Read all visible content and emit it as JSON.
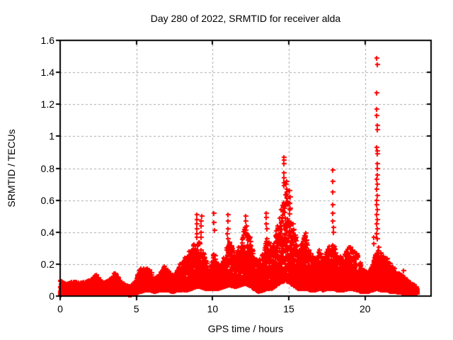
{
  "chart_data": {
    "type": "scatter",
    "title": "Day 280 of 2022, SRMTID for receiver alda",
    "xlabel": "GPS time / hours",
    "ylabel": "SRMTID / TECUs",
    "series_name": "SRMTID",
    "xlim": [
      0,
      24.33
    ],
    "ylim": [
      0,
      1.6
    ],
    "x_data_range": [
      0,
      23.42
    ],
    "grid": true,
    "legend": "none",
    "xticks": [
      {
        "v": 0,
        "label": "0"
      },
      {
        "v": 5,
        "label": "5"
      },
      {
        "v": 10,
        "label": "10"
      },
      {
        "v": 15,
        "label": "15"
      },
      {
        "v": 20,
        "label": "20"
      }
    ],
    "yticks": [
      {
        "v": 0,
        "label": "0"
      },
      {
        "v": 0.2,
        "label": "0.2"
      },
      {
        "v": 0.4,
        "label": "0.4"
      },
      {
        "v": 0.6,
        "label": "0.6"
      },
      {
        "v": 0.8,
        "label": "0.8"
      },
      {
        "v": 1,
        "label": "1"
      },
      {
        "v": 1.2,
        "label": "1.2"
      },
      {
        "v": 1.4,
        "label": "1.4"
      },
      {
        "v": 1.6,
        "label": "1.6"
      }
    ],
    "marker": {
      "shape": "plus",
      "color": "#ff0000",
      "size": 7
    },
    "colors": {
      "background": "#ffffff",
      "border": "#000000",
      "grid": "#a8a8a8",
      "text": "#000000"
    },
    "representation": "band_envelope rows are [hour, band_min, band_max] of the dense scatter band; spike_columns are discrete high-value points above the band",
    "band_envelope": {
      "points": [
        [
          0.0,
          0.01,
          0.1
        ],
        [
          0.4,
          0.015,
          0.08
        ],
        [
          0.8,
          0.02,
          0.09
        ],
        [
          1.2,
          0.015,
          0.09
        ],
        [
          1.6,
          0.02,
          0.09
        ],
        [
          2.0,
          0.02,
          0.1
        ],
        [
          2.3,
          0.02,
          0.15
        ],
        [
          2.6,
          0.02,
          0.1
        ],
        [
          3.0,
          0.02,
          0.09
        ],
        [
          3.3,
          0.02,
          0.11
        ],
        [
          3.6,
          0.02,
          0.15
        ],
        [
          3.9,
          0.02,
          0.1
        ],
        [
          4.2,
          0.015,
          0.08
        ],
        [
          4.6,
          0.01,
          0.06
        ],
        [
          4.9,
          0.015,
          0.09
        ],
        [
          5.2,
          0.03,
          0.17
        ],
        [
          5.6,
          0.04,
          0.19
        ],
        [
          5.9,
          0.04,
          0.16
        ],
        [
          6.2,
          0.03,
          0.11
        ],
        [
          6.5,
          0.04,
          0.14
        ],
        [
          6.8,
          0.04,
          0.19
        ],
        [
          7.1,
          0.04,
          0.16
        ],
        [
          7.4,
          0.03,
          0.13
        ],
        [
          7.7,
          0.04,
          0.17
        ],
        [
          8.0,
          0.04,
          0.23
        ],
        [
          8.3,
          0.04,
          0.26
        ],
        [
          8.6,
          0.05,
          0.3
        ],
        [
          8.9,
          0.06,
          0.35
        ],
        [
          9.2,
          0.06,
          0.33
        ],
        [
          9.5,
          0.05,
          0.24
        ],
        [
          9.8,
          0.05,
          0.17
        ],
        [
          10.1,
          0.05,
          0.28
        ],
        [
          10.4,
          0.05,
          0.18
        ],
        [
          10.7,
          0.06,
          0.22
        ],
        [
          11.0,
          0.07,
          0.36
        ],
        [
          11.2,
          0.07,
          0.34
        ],
        [
          11.5,
          0.06,
          0.27
        ],
        [
          11.8,
          0.07,
          0.32
        ],
        [
          12.1,
          0.08,
          0.44
        ],
        [
          12.4,
          0.07,
          0.38
        ],
        [
          12.7,
          0.05,
          0.26
        ],
        [
          13.0,
          0.03,
          0.21
        ],
        [
          13.3,
          0.04,
          0.27
        ],
        [
          13.6,
          0.05,
          0.38
        ],
        [
          13.9,
          0.05,
          0.29
        ],
        [
          14.2,
          0.07,
          0.42
        ],
        [
          14.5,
          0.09,
          0.55
        ],
        [
          14.8,
          0.1,
          0.67
        ],
        [
          15.0,
          0.09,
          0.6
        ],
        [
          15.3,
          0.07,
          0.46
        ],
        [
          15.6,
          0.05,
          0.28
        ],
        [
          15.9,
          0.05,
          0.34
        ],
        [
          16.1,
          0.05,
          0.41
        ],
        [
          16.4,
          0.04,
          0.27
        ],
        [
          16.7,
          0.04,
          0.24
        ],
        [
          17.0,
          0.05,
          0.29
        ],
        [
          17.3,
          0.04,
          0.24
        ],
        [
          17.6,
          0.05,
          0.31
        ],
        [
          17.9,
          0.05,
          0.33
        ],
        [
          18.2,
          0.04,
          0.24
        ],
        [
          18.6,
          0.04,
          0.27
        ],
        [
          18.9,
          0.05,
          0.3
        ],
        [
          19.1,
          0.05,
          0.32
        ],
        [
          19.5,
          0.04,
          0.26
        ],
        [
          19.8,
          0.03,
          0.17
        ],
        [
          20.2,
          0.03,
          0.15
        ],
        [
          20.5,
          0.04,
          0.2
        ],
        [
          20.8,
          0.05,
          0.32
        ],
        [
          21.1,
          0.04,
          0.26
        ],
        [
          21.4,
          0.04,
          0.24
        ],
        [
          21.7,
          0.03,
          0.2
        ],
        [
          22.0,
          0.03,
          0.17
        ],
        [
          22.3,
          0.025,
          0.14
        ],
        [
          22.6,
          0.02,
          0.12
        ],
        [
          22.9,
          0.02,
          0.09
        ],
        [
          23.2,
          0.015,
          0.07
        ],
        [
          23.42,
          0.015,
          0.05
        ]
      ]
    },
    "spike_columns": [
      {
        "t": 8.97,
        "values": [
          0.51,
          0.48,
          0.45,
          0.42,
          0.39,
          0.37
        ]
      },
      {
        "t": 9.25,
        "values": [
          0.5,
          0.47,
          0.44,
          0.4,
          0.37
        ]
      },
      {
        "t": 10.08,
        "values": [
          0.52,
          0.46,
          0.41
        ]
      },
      {
        "t": 11.0,
        "values": [
          0.51,
          0.47,
          0.42,
          0.39
        ]
      },
      {
        "t": 12.18,
        "values": [
          0.5,
          0.47,
          0.44,
          0.41
        ]
      },
      {
        "t": 13.52,
        "values": [
          0.52,
          0.49,
          0.45,
          0.42
        ]
      },
      {
        "t": 14.68,
        "values": [
          0.87,
          0.85,
          0.83,
          0.77,
          0.74,
          0.71,
          0.69
        ]
      },
      {
        "t": 14.85,
        "values": [
          0.72,
          0.7,
          0.67,
          0.64,
          0.61
        ]
      },
      {
        "t": 15.05,
        "values": [
          0.66,
          0.62,
          0.58,
          0.54
        ]
      },
      {
        "t": 17.88,
        "values": [
          0.79,
          0.72,
          0.65,
          0.57,
          0.52,
          0.47,
          0.43,
          0.4
        ]
      },
      {
        "t": 20.55,
        "values": [
          0.37,
          0.33
        ]
      },
      {
        "t": 20.78,
        "values": [
          1.49,
          1.45,
          1.27,
          1.17,
          1.13,
          1.07,
          1.04,
          0.93,
          0.91,
          0.89,
          0.83,
          0.8,
          0.76,
          0.73,
          0.7,
          0.67,
          0.63,
          0.6,
          0.57,
          0.54,
          0.51,
          0.48,
          0.45,
          0.42,
          0.39,
          0.36
        ]
      },
      {
        "t": 22.48,
        "values": [
          0.16
        ]
      }
    ]
  }
}
